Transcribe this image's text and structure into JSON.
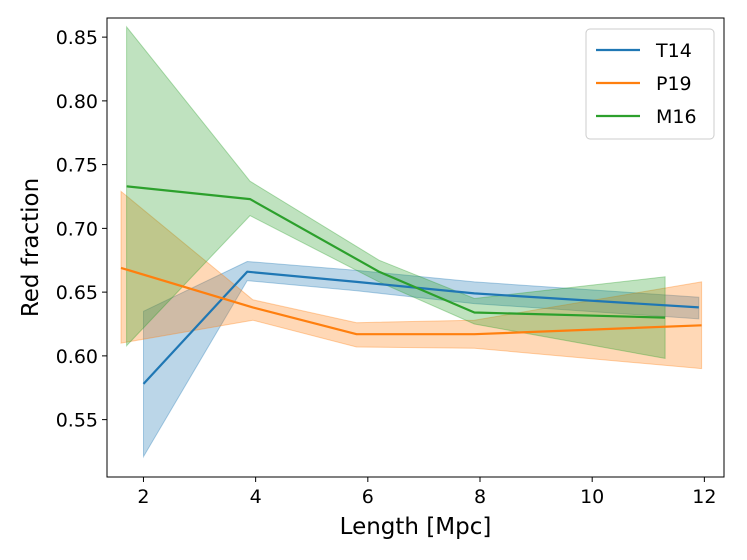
{
  "chart_data": {
    "type": "line",
    "title": "",
    "xlabel": "Length [Mpc]",
    "ylabel": "Red fraction",
    "xlim": [
      1.35,
      12.35
    ],
    "ylim": [
      0.505,
      0.865
    ],
    "xticks": [
      2,
      4,
      6,
      8,
      10,
      12
    ],
    "yticks": [
      0.55,
      0.6,
      0.65,
      0.7,
      0.75,
      0.8,
      0.85
    ],
    "xtick_labels": [
      "2",
      "4",
      "6",
      "8",
      "10",
      "12"
    ],
    "ytick_labels": [
      "0.55",
      "0.60",
      "0.65",
      "0.70",
      "0.75",
      "0.80",
      "0.85"
    ],
    "legend_position": "top-right",
    "series": [
      {
        "name": "T14",
        "color": "#1f77b4",
        "x": [
          2.0,
          3.85,
          5.8,
          7.9,
          11.9
        ],
        "y": [
          0.578,
          0.666,
          0.658,
          0.649,
          0.638
        ],
        "lower": [
          0.521,
          0.659,
          0.651,
          0.641,
          0.629
        ],
        "upper": [
          0.635,
          0.674,
          0.667,
          0.658,
          0.646
        ]
      },
      {
        "name": "P19",
        "color": "#ff7f0e",
        "x": [
          1.6,
          3.95,
          5.8,
          7.9,
          11.95
        ],
        "y": [
          0.669,
          0.638,
          0.617,
          0.617,
          0.624
        ],
        "lower": [
          0.61,
          0.628,
          0.607,
          0.606,
          0.59
        ],
        "upper": [
          0.729,
          0.644,
          0.626,
          0.628,
          0.658
        ]
      },
      {
        "name": "M16",
        "color": "#2ca02c",
        "x": [
          1.7,
          3.9,
          6.2,
          7.9,
          11.3
        ],
        "y": [
          0.733,
          0.723,
          0.666,
          0.634,
          0.63
        ],
        "lower": [
          0.608,
          0.71,
          0.658,
          0.625,
          0.598
        ],
        "upper": [
          0.858,
          0.737,
          0.675,
          0.645,
          0.662
        ]
      }
    ]
  }
}
